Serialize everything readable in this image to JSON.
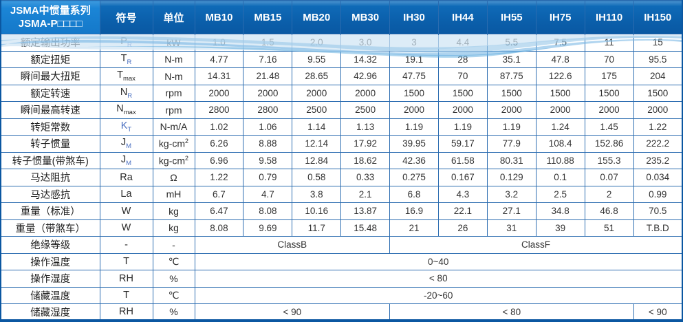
{
  "header": {
    "series_line1": "JSMA中惯量系列",
    "series_line2": "JSMA-P□□□□",
    "symbol_col": "符号",
    "unit_col": "单位",
    "models": [
      "MB10",
      "MB15",
      "MB20",
      "MB30",
      "IH30",
      "IH44",
      "IH55",
      "IH75",
      "IH110",
      "IH150"
    ]
  },
  "rows": [
    {
      "label": "额定输出功率",
      "symbol": "P",
      "sub": "R",
      "unit": "kW",
      "values": [
        "1.0",
        "1.5",
        "2.0",
        "3.0",
        "3",
        "4.4",
        "5.5",
        "7.5",
        "11",
        "15"
      ]
    },
    {
      "label": "额定扭矩",
      "symbol": "T",
      "sub": "R",
      "unit": "N-m",
      "values": [
        "4.77",
        "7.16",
        "9.55",
        "14.32",
        "19.1",
        "28",
        "35.1",
        "47.8",
        "70",
        "95.5"
      ]
    },
    {
      "label": "瞬间最大扭矩",
      "symbol": "T",
      "sub": "max",
      "unit": "N-m",
      "values": [
        "14.31",
        "21.48",
        "28.65",
        "42.96",
        "47.75",
        "70",
        "87.75",
        "122.6",
        "175",
        "204"
      ]
    },
    {
      "label": "额定转速",
      "symbol": "N",
      "sub": "R",
      "unit": "rpm",
      "values": [
        "2000",
        "2000",
        "2000",
        "2000",
        "1500",
        "1500",
        "1500",
        "1500",
        "1500",
        "1500"
      ]
    },
    {
      "label": "瞬间最高转速",
      "symbol": "N",
      "sub": "max",
      "unit": "rpm",
      "values": [
        "2800",
        "2800",
        "2500",
        "2500",
        "2000",
        "2000",
        "2000",
        "2000",
        "2000",
        "2000"
      ]
    },
    {
      "label": "转矩常数",
      "symbol": "K",
      "sub": "T",
      "unit": "N-m/A",
      "values": [
        "1.02",
        "1.06",
        "1.14",
        "1.13",
        "1.19",
        "1.19",
        "1.19",
        "1.24",
        "1.45",
        "1.22"
      ]
    },
    {
      "label": "转子惯量",
      "symbol": "J",
      "sub": "M",
      "unit": "kg-cm",
      "unit_sup": "2",
      "values": [
        "6.26",
        "8.88",
        "12.14",
        "17.92",
        "39.95",
        "59.17",
        "77.9",
        "108.4",
        "152.86",
        "222.2"
      ]
    },
    {
      "label": "转子惯量(带煞车)",
      "symbol": "J",
      "sub": "M",
      "unit": "kg-cm",
      "unit_sup": "2",
      "values": [
        "6.96",
        "9.58",
        "12.84",
        "18.62",
        "42.36",
        "61.58",
        "80.31",
        "110.88",
        "155.3",
        "235.2"
      ]
    },
    {
      "label": "马达阻抗",
      "symbol": "Ra",
      "sub": "",
      "unit": "Ω",
      "values": [
        "1.22",
        "0.79",
        "0.58",
        "0.33",
        "0.275",
        "0.167",
        "0.129",
        "0.1",
        "0.07",
        "0.034"
      ]
    },
    {
      "label": "马达感抗",
      "symbol": "La",
      "sub": "",
      "unit": "mH",
      "values": [
        "6.7",
        "4.7",
        "3.8",
        "2.1",
        "6.8",
        "4.3",
        "3.2",
        "2.5",
        "2",
        "0.99"
      ]
    },
    {
      "label": "重量（标准）",
      "symbol": "W",
      "sub": "",
      "unit": "kg",
      "values": [
        "6.47",
        "8.08",
        "10.16",
        "13.87",
        "16.9",
        "22.1",
        "27.1",
        "34.8",
        "46.8",
        "70.5"
      ]
    },
    {
      "label": "重量（带煞车）",
      "symbol": "W",
      "sub": "",
      "unit": "kg",
      "values": [
        "8.08",
        "9.69",
        "11.7",
        "15.48",
        "21",
        "26",
        "31",
        "39",
        "51",
        "T.B.D"
      ]
    },
    {
      "label": "绝缘等级",
      "symbol": "-",
      "sub": "",
      "unit": "-",
      "merged": [
        {
          "text": "ClassB",
          "span": 4
        },
        {
          "text": "ClassF",
          "span": 6
        }
      ]
    },
    {
      "label": "操作温度",
      "symbol": "T",
      "sub": "",
      "unit": "℃",
      "merged": [
        {
          "text": "0~40",
          "span": 10
        }
      ]
    },
    {
      "label": "操作湿度",
      "symbol": "RH",
      "sub": "",
      "unit": "%",
      "merged": [
        {
          "text": "< 80",
          "span": 10
        }
      ]
    },
    {
      "label": "储藏温度",
      "symbol": "T",
      "sub": "",
      "unit": "℃",
      "merged": [
        {
          "text": "-20~60",
          "span": 10
        }
      ]
    },
    {
      "label": "储藏湿度",
      "symbol": "RH",
      "sub": "",
      "unit": "%",
      "merged": [
        {
          "text": "< 90",
          "span": 4
        },
        {
          "text": "< 80",
          "span": 5
        },
        {
          "text": "< 90",
          "span": 1
        }
      ]
    }
  ],
  "colors": {
    "header_bright_blue": "#1b85d6",
    "header_dark_blue": "#0b60ac",
    "border_blue": "#2b6cb0",
    "outer_border_blue": "#0b57a1",
    "wave_light": "#cfe4f4",
    "wave_mid": "#9ecbe9",
    "wave_deep": "#6cb0e0",
    "value_text": "#323232",
    "subscript_blue": "#4a6fc0"
  }
}
